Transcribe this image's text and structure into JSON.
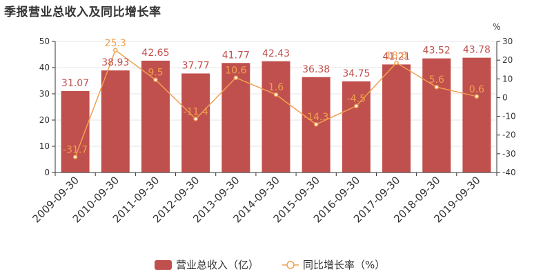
{
  "title": "季报营业总收入及同比增长率",
  "colors": {
    "bar": "#c0504d",
    "line": "#f0a050",
    "axis": "#333333",
    "grid": "#e6e6e6"
  },
  "chart_data": {
    "type": "bar",
    "title": "季报营业总收入及同比增长率",
    "categories": [
      "2009-09-30",
      "2010-09-30",
      "2011-09-30",
      "2012-09-30",
      "2013-09-30",
      "2014-09-30",
      "2015-09-30",
      "2016-09-30",
      "2017-09-30",
      "2018-09-30",
      "2019-09-30"
    ],
    "y_left": {
      "ylim": [
        0,
        50
      ],
      "ticks": [
        "0",
        "10",
        "20",
        "30",
        "40",
        "50"
      ]
    },
    "y_right": {
      "unit": "%",
      "ylim": [
        -40,
        30
      ],
      "ticks": [
        "-40",
        "-30",
        "-20",
        "-10",
        "0",
        "10",
        "20",
        "30"
      ]
    },
    "series": [
      {
        "name": "营业总收入（亿）",
        "type": "bar",
        "axis": "left",
        "values": [
          31.07,
          38.93,
          42.65,
          37.77,
          41.77,
          42.43,
          36.38,
          34.75,
          41.21,
          43.52,
          43.78
        ],
        "labels": [
          "31.07",
          "38.93",
          "42.65",
          "37.77",
          "41.77",
          "42.43",
          "36.38",
          "34.75",
          "41.21",
          "43.52",
          "43.78"
        ]
      },
      {
        "name": "同比增长率（%）",
        "type": "line",
        "axis": "right",
        "values": [
          -31.7,
          25.3,
          9.5,
          -11.4,
          10.6,
          1.6,
          -14.3,
          -4.5,
          18.6,
          5.6,
          0.6
        ],
        "labels": [
          "-31.7",
          "25.3",
          "9.5",
          "-11.4",
          "10.6",
          "1.6",
          "-14.3",
          "-4.5",
          "18.6",
          "5.6",
          "0.6"
        ]
      }
    ],
    "grid": true,
    "legend": "bottom-center"
  }
}
